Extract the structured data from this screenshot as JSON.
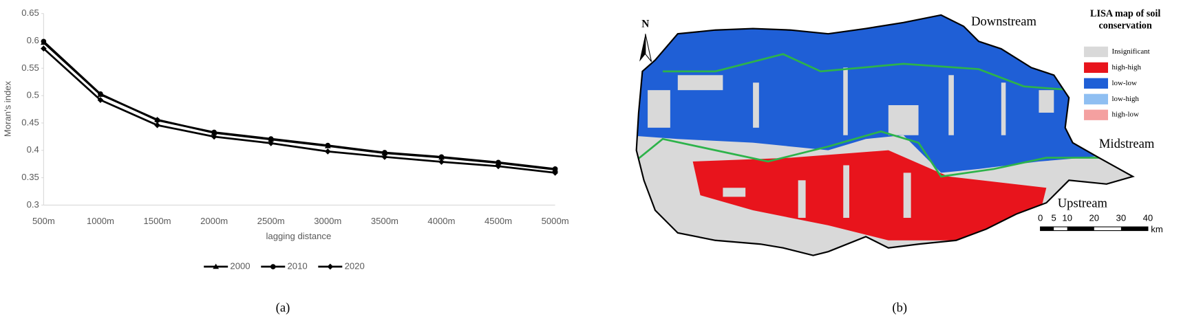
{
  "chart_data": {
    "type": "line",
    "xlabel": "lagging distance",
    "ylabel": "Moran's index",
    "caption": "(a)",
    "categories": [
      "500m",
      "1000m",
      "1500m",
      "2000m",
      "2500m",
      "3000m",
      "3500m",
      "4000m",
      "4500m",
      "5000m"
    ],
    "series": [
      {
        "name": "2000",
        "color": "#000000",
        "marker": "triangle",
        "values": [
          0.597,
          0.502,
          0.456,
          0.432,
          0.42,
          0.408,
          0.395,
          0.387,
          0.377,
          0.365
        ]
      },
      {
        "name": "2010",
        "color": "#000000",
        "marker": "circle",
        "values": [
          0.599,
          0.503,
          0.455,
          0.433,
          0.421,
          0.409,
          0.396,
          0.388,
          0.378,
          0.366
        ]
      },
      {
        "name": "2020",
        "color": "#000000",
        "marker": "diamond",
        "values": [
          0.586,
          0.492,
          0.446,
          0.425,
          0.413,
          0.398,
          0.388,
          0.379,
          0.371,
          0.359
        ]
      }
    ],
    "ylim": [
      0.3,
      0.65
    ],
    "yticks": [
      0.3,
      0.35,
      0.4,
      0.45,
      0.5,
      0.55,
      0.6,
      0.65
    ],
    "grid": false,
    "legend": "bottom"
  },
  "map": {
    "caption": "(b)",
    "north": "N",
    "regions": [
      "Downstream",
      "Midstream",
      "Upstream"
    ],
    "legend": {
      "title": "LISA map of soil conservation",
      "items": [
        {
          "label": "Insignificant",
          "color": "#d9d9d9"
        },
        {
          "label": "high-high",
          "color": "#e8141c"
        },
        {
          "label": "low-low",
          "color": "#1f5fd6"
        },
        {
          "label": "low-high",
          "color": "#8fbff2"
        },
        {
          "label": "high-low",
          "color": "#f4a0a0"
        }
      ]
    },
    "scale": {
      "ticks": [
        0,
        5,
        10,
        20,
        30,
        40
      ],
      "unit": "km"
    }
  }
}
